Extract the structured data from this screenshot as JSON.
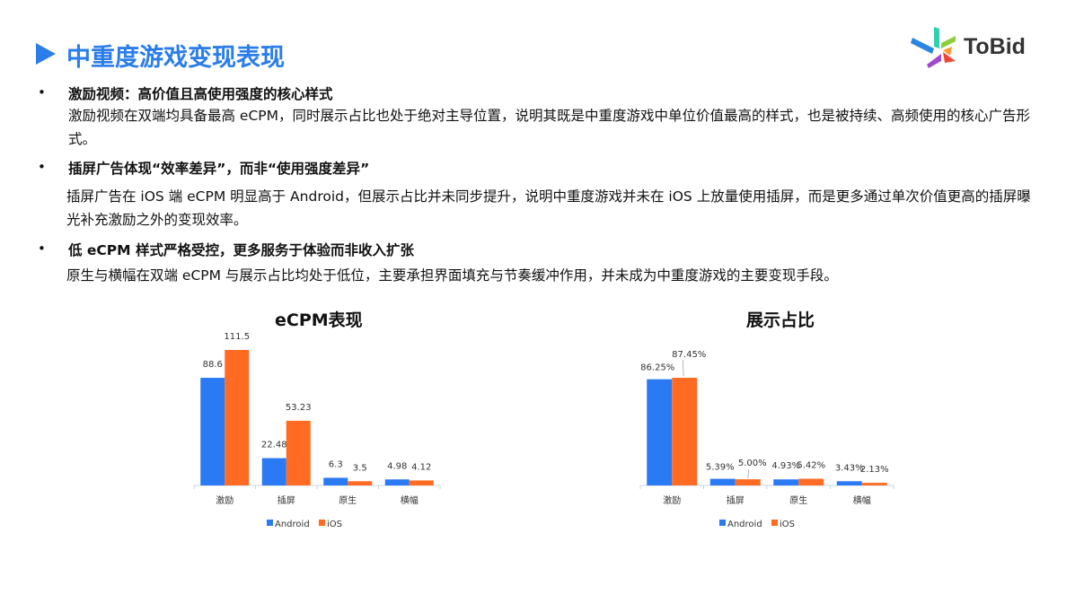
{
  "title": "中重度游戏变现表现",
  "logo": {
    "text": "ToBid"
  },
  "sections": [
    {
      "bullet": "•",
      "heading": "激励视频：高价值且高使用强度的核心样式",
      "body": "激励视频在双端均具备最高 eCPM，同时展示占比也处于绝对主导位置，说明其既是中重度游戏中单位价值最高的样式，也是被持续、高频使用的核心广告形式。"
    },
    {
      "bullet": "•",
      "heading": "插屏广告体现“效率差异”，而非“使用强度差异”",
      "body": "插屏广告在 iOS 端 eCPM 明显高于 Android，但展示占比并未同步提升，说明中重度游戏并未在 iOS 上放量使用插屏，而是更多通过单次价值更高的插屏曝光补充激励之外的变现效率。"
    },
    {
      "bullet": "•",
      "heading": "低 eCPM 样式严格受控，更多服务于体验而非收入扩张",
      "body": "原生与横幅在双端 eCPM 与展示占比均处于低位，主要承担界面填充与节奏缓冲作用，并未成为中重度游戏的主要变现手段。"
    }
  ],
  "colors": {
    "accent": "#2b7de9",
    "android": "#2a7af3",
    "ios": "#ff6b22",
    "axis": "#c9d3e6"
  },
  "chart_data": [
    {
      "type": "bar",
      "title": "eCPM表现",
      "categories": [
        "激励",
        "插屏",
        "原生",
        "横幅"
      ],
      "series": [
        {
          "name": "Android",
          "values": [
            88.6,
            22.48,
            6.3,
            4.98
          ],
          "labels": [
            "88.6",
            "22.48",
            "6.3",
            "4.98"
          ]
        },
        {
          "name": "iOS",
          "values": [
            111.5,
            53.23,
            3.5,
            4.12
          ],
          "labels": [
            "111.5",
            "53.23",
            "3.5",
            "4.12"
          ]
        }
      ],
      "ylim": [
        0,
        111.5
      ],
      "grid": false,
      "legend": "bottom"
    },
    {
      "type": "bar",
      "title": "展示占比",
      "categories": [
        "激励",
        "插屏",
        "原生",
        "横幅"
      ],
      "series": [
        {
          "name": "Android",
          "values": [
            86.25,
            5.39,
            4.93,
            3.43
          ],
          "labels": [
            "86.25%",
            "5.39%",
            "4.93%",
            "3.43%"
          ]
        },
        {
          "name": "iOS",
          "values": [
            87.45,
            5.0,
            5.42,
            2.13
          ],
          "labels": [
            "87.45%",
            "5.00%",
            "5.42%",
            "2.13%"
          ]
        }
      ],
      "ylim": [
        0,
        87.45
      ],
      "grid": false,
      "legend": "bottom"
    }
  ]
}
